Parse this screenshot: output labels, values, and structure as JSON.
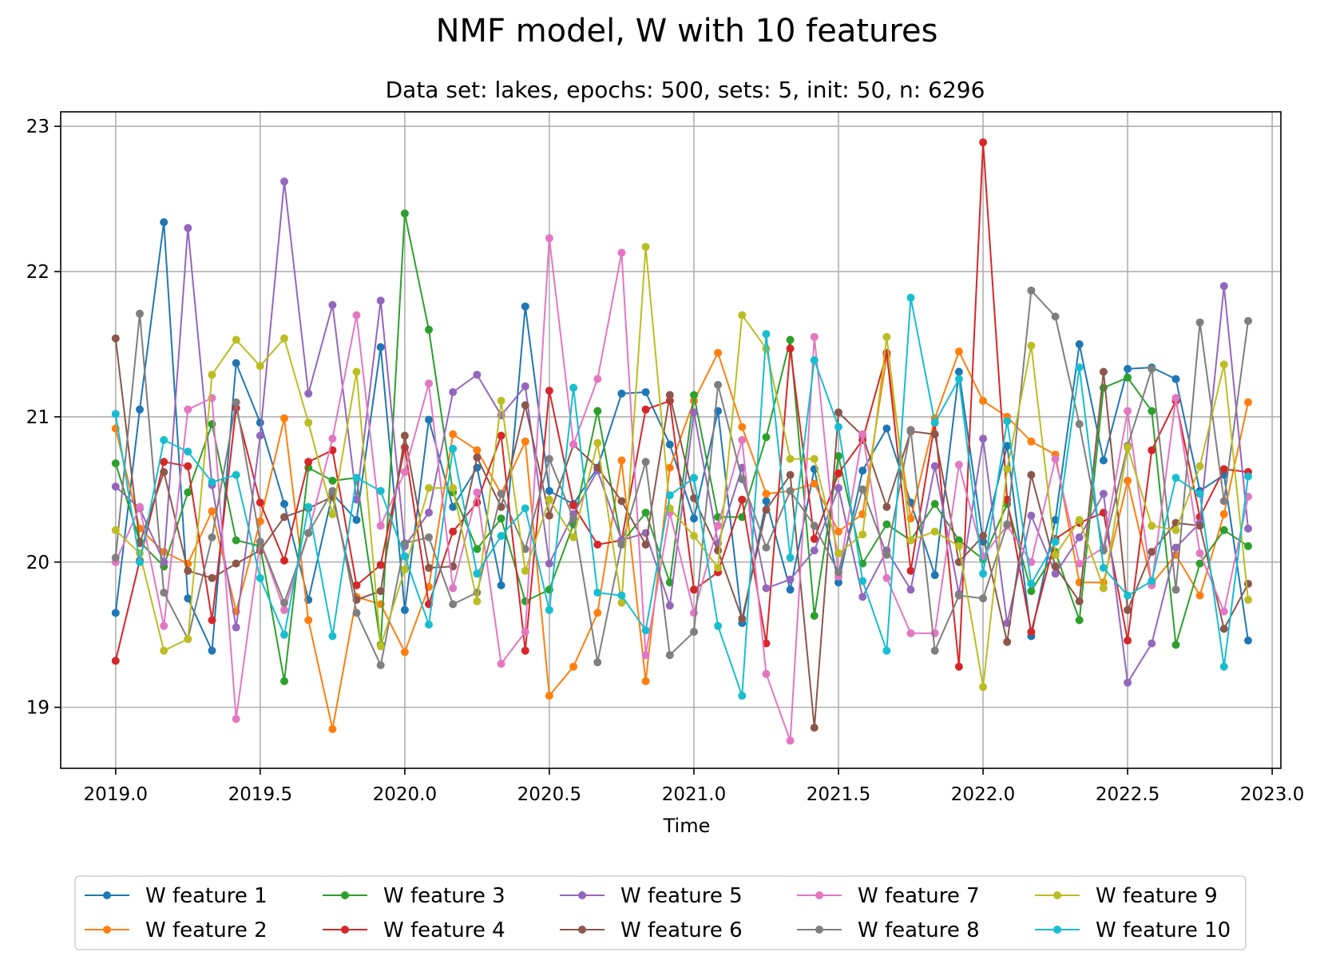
{
  "chart_data": {
    "type": "line",
    "title": "NMF model, W with 10 features",
    "subtitle": "Data set: lakes, epochs: 500, sets: 5, init: 50, n: 6296",
    "xlabel": "Time",
    "ylabel": "",
    "xlim": [
      2018.81,
      2023.03
    ],
    "ylim": [
      18.58,
      23.1
    ],
    "xticks": [
      "2019.0",
      "2019.5",
      "2020.0",
      "2020.5",
      "2021.0",
      "2021.5",
      "2022.0",
      "2022.5",
      "2023.0"
    ],
    "yticks": [
      "19",
      "20",
      "21",
      "22",
      "23"
    ],
    "grid": true,
    "legend_position": "below",
    "x": [
      2019.0,
      2019.0833,
      2019.1667,
      2019.25,
      2019.3333,
      2019.4167,
      2019.5,
      2019.5833,
      2019.6667,
      2019.75,
      2019.8333,
      2019.9167,
      2020.0,
      2020.0833,
      2020.1667,
      2020.25,
      2020.3333,
      2020.4167,
      2020.5,
      2020.5833,
      2020.6667,
      2020.75,
      2020.8333,
      2020.9167,
      2021.0,
      2021.0833,
      2021.1667,
      2021.25,
      2021.3333,
      2021.4167,
      2021.5,
      2021.5833,
      2021.6667,
      2021.75,
      2021.8333,
      2021.9167,
      2022.0,
      2022.0833,
      2022.1667,
      2022.25,
      2022.3333,
      2022.4167,
      2022.5,
      2022.5833,
      2022.6667,
      2022.75,
      2022.8333,
      2022.9167
    ],
    "series": [
      {
        "name": "W feature 1",
        "color": "#1f77b4",
        "values": [
          19.65,
          21.05,
          22.34,
          19.75,
          19.39,
          21.37,
          20.96,
          20.4,
          19.74,
          20.47,
          20.29,
          21.48,
          19.67,
          20.98,
          20.38,
          20.65,
          19.84,
          21.76,
          20.49,
          20.4,
          20.65,
          21.16,
          21.17,
          20.81,
          20.3,
          21.04,
          19.58,
          20.42,
          19.81,
          20.64,
          19.86,
          20.63,
          20.92,
          20.41,
          19.91,
          21.31,
          20.14,
          20.8,
          19.49,
          20.29,
          21.5,
          20.7,
          21.33,
          21.34,
          21.26,
          20.49,
          20.6,
          19.46
        ]
      },
      {
        "name": "W feature 2",
        "color": "#ff7f0e",
        "values": [
          20.92,
          20.23,
          20.07,
          19.99,
          20.35,
          19.66,
          20.28,
          20.99,
          19.6,
          18.85,
          19.76,
          19.71,
          19.38,
          19.83,
          20.88,
          20.77,
          20.47,
          20.83,
          19.08,
          19.28,
          19.65,
          20.7,
          19.18,
          20.65,
          21.11,
          21.44,
          20.93,
          20.47,
          20.49,
          20.54,
          20.21,
          20.33,
          21.42,
          20.3,
          20.99,
          21.45,
          21.11,
          21.0,
          20.83,
          20.74,
          19.86,
          19.86,
          20.56,
          19.85,
          20.05,
          19.77,
          20.33,
          21.1
        ]
      },
      {
        "name": "W feature 3",
        "color": "#2ca02c",
        "values": [
          20.68,
          20.14,
          19.97,
          20.48,
          20.95,
          20.15,
          20.11,
          19.18,
          20.65,
          20.56,
          20.58,
          19.43,
          22.4,
          21.6,
          20.48,
          20.09,
          20.3,
          19.73,
          19.81,
          20.26,
          21.04,
          20.13,
          20.34,
          19.86,
          21.15,
          20.31,
          20.31,
          20.86,
          21.53,
          19.63,
          20.73,
          19.99,
          20.26,
          20.15,
          20.4,
          20.15,
          20.02,
          20.4,
          19.8,
          20.07,
          19.6,
          21.2,
          21.27,
          21.04,
          19.43,
          19.99,
          20.22,
          20.11
        ]
      },
      {
        "name": "W feature 4",
        "color": "#d62728",
        "values": [
          19.32,
          20.01,
          20.69,
          20.66,
          19.6,
          21.06,
          20.41,
          20.01,
          20.69,
          20.77,
          19.84,
          19.98,
          20.79,
          19.71,
          20.21,
          20.41,
          20.87,
          19.39,
          21.18,
          20.39,
          20.12,
          20.15,
          21.05,
          21.11,
          19.81,
          19.93,
          20.43,
          19.44,
          21.47,
          20.16,
          20.61,
          20.84,
          21.44,
          19.94,
          20.96,
          19.28,
          22.89,
          20.43,
          19.52,
          20.16,
          20.27,
          20.34,
          19.46,
          20.77,
          21.11,
          20.31,
          20.64,
          20.62
        ]
      },
      {
        "name": "W feature 5",
        "color": "#9467bd",
        "values": [
          20.52,
          20.37,
          20.0,
          22.3,
          20.53,
          19.55,
          20.87,
          22.62,
          21.16,
          21.77,
          20.43,
          21.8,
          20.11,
          20.34,
          21.17,
          21.29,
          21.01,
          21.21,
          19.99,
          20.33,
          20.63,
          20.15,
          20.2,
          19.7,
          21.03,
          20.13,
          20.65,
          19.82,
          19.88,
          20.08,
          20.51,
          19.76,
          20.08,
          19.81,
          20.66,
          19.78,
          20.85,
          19.58,
          20.32,
          19.92,
          20.17,
          20.47,
          19.17,
          19.44,
          20.1,
          20.27,
          21.9,
          20.23
        ]
      },
      {
        "name": "W feature 6",
        "color": "#8c564b",
        "values": [
          21.54,
          20.13,
          20.62,
          19.94,
          19.89,
          19.99,
          20.08,
          20.31,
          20.37,
          20.45,
          19.74,
          19.8,
          20.87,
          19.96,
          19.97,
          20.72,
          20.38,
          21.08,
          20.32,
          20.81,
          20.65,
          20.42,
          20.12,
          21.15,
          20.44,
          20.08,
          19.61,
          20.36,
          20.6,
          18.86,
          21.03,
          20.87,
          20.38,
          20.9,
          20.88,
          20.0,
          20.18,
          19.45,
          20.6,
          19.97,
          19.73,
          21.31,
          19.67,
          20.07,
          20.27,
          20.25,
          19.54,
          19.85
        ]
      },
      {
        "name": "W feature 7",
        "color": "#e377c2",
        "values": [
          20.0,
          20.38,
          19.56,
          21.05,
          21.13,
          18.92,
          20.14,
          19.67,
          20.2,
          20.85,
          21.7,
          20.25,
          20.62,
          21.23,
          19.82,
          20.48,
          19.3,
          19.52,
          22.23,
          20.81,
          21.26,
          22.13,
          19.36,
          20.34,
          19.65,
          20.25,
          20.84,
          19.23,
          18.77,
          21.55,
          19.9,
          20.88,
          19.89,
          19.51,
          19.51,
          20.67,
          20.04,
          20.25,
          20.0,
          20.71,
          19.99,
          20.1,
          21.04,
          19.84,
          21.13,
          20.06,
          19.66,
          20.45
        ]
      },
      {
        "name": "W feature 8",
        "color": "#7f7f7f",
        "values": [
          20.03,
          21.71,
          19.79,
          19.47,
          20.17,
          21.1,
          20.14,
          19.72,
          20.2,
          20.49,
          19.65,
          19.29,
          20.13,
          20.17,
          19.71,
          19.79,
          20.47,
          20.09,
          20.71,
          20.3,
          19.31,
          20.12,
          20.69,
          19.36,
          19.52,
          21.22,
          20.57,
          20.1,
          20.49,
          20.25,
          19.93,
          20.5,
          20.05,
          20.91,
          19.39,
          19.77,
          19.75,
          20.26,
          21.87,
          21.69,
          20.95,
          20.08,
          20.8,
          21.33,
          19.81,
          21.65,
          20.42,
          21.66
        ]
      },
      {
        "name": "W feature 9",
        "color": "#bcbd22",
        "values": [
          20.22,
          20.06,
          19.39,
          19.47,
          21.29,
          21.53,
          21.35,
          21.54,
          20.96,
          20.33,
          21.31,
          19.42,
          19.95,
          20.51,
          20.51,
          19.73,
          21.11,
          19.94,
          20.43,
          20.17,
          20.82,
          19.72,
          22.17,
          20.37,
          20.18,
          19.96,
          21.7,
          21.47,
          20.71,
          20.71,
          20.06,
          20.19,
          21.55,
          20.15,
          20.21,
          20.11,
          19.14,
          20.64,
          21.49,
          20.05,
          20.29,
          19.82,
          20.79,
          20.25,
          20.22,
          20.66,
          21.36,
          19.74
        ]
      },
      {
        "name": "W feature 10",
        "color": "#17becf",
        "values": [
          21.02,
          20.0,
          20.84,
          20.76,
          20.55,
          20.6,
          19.89,
          19.5,
          20.38,
          19.49,
          20.58,
          20.49,
          20.04,
          19.57,
          20.78,
          19.92,
          20.18,
          20.37,
          19.67,
          21.2,
          19.79,
          19.77,
          19.53,
          20.46,
          20.58,
          19.56,
          19.08,
          21.57,
          20.03,
          21.39,
          20.93,
          19.87,
          19.39,
          21.82,
          20.96,
          21.26,
          19.92,
          20.97,
          19.85,
          20.14,
          21.34,
          19.96,
          19.77,
          19.87,
          20.58,
          20.47,
          19.28,
          20.59
        ]
      }
    ]
  }
}
